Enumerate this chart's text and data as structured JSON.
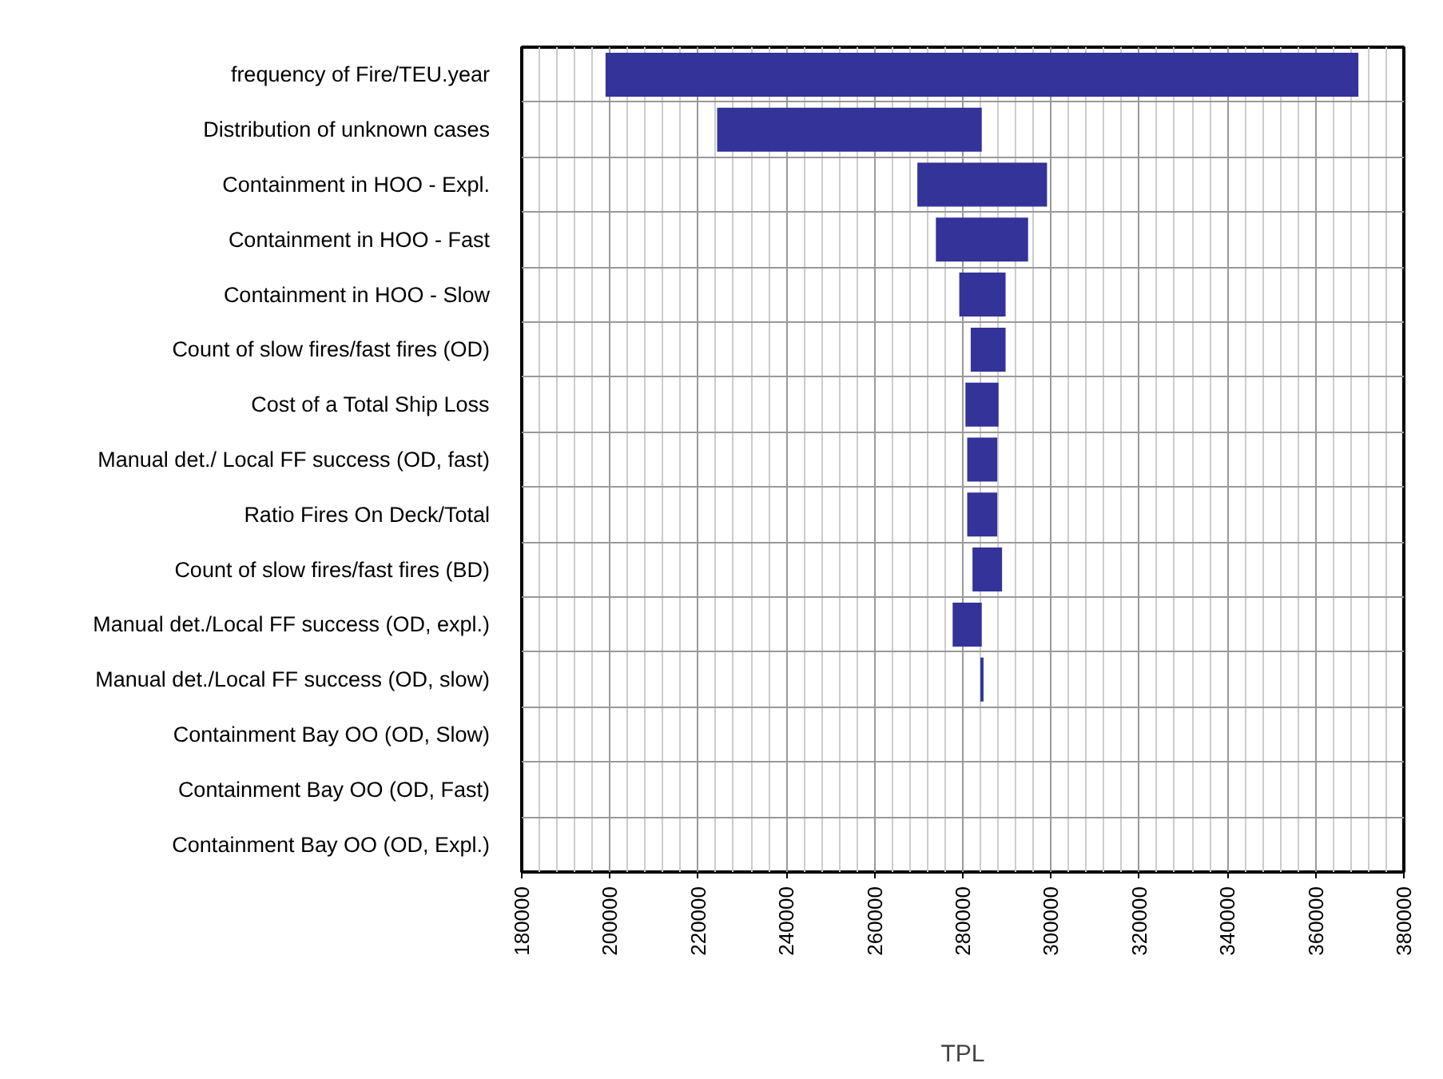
{
  "chart_data": {
    "type": "bar",
    "orientation": "horizontal",
    "xlabel": "TPL",
    "categories": [
      "frequency of Fire/TEU.year",
      "Distribution of unknown cases",
      "Containment in HOO - Expl.",
      "Containment in HOO - Fast",
      "Containment in HOO - Slow",
      "Count of slow fires/fast fires (OD)",
      "Cost of a Total Ship Loss",
      "Manual det./ Local FF success (OD, fast)",
      "Ratio Fires On Deck/Total",
      "Count of slow fires/fast fires (BD)",
      "Manual det./Local FF success (OD, expl.)",
      "Manual det./Local FF success (OD, slow)",
      "Containment Bay OO (OD, Slow)",
      "Containment Bay OO (OD, Fast)",
      "Containment Bay OO (OD, Expl.)"
    ],
    "base": [
      199000,
      224300,
      269700,
      273900,
      279200,
      281800,
      280600,
      281000,
      281000,
      282200,
      277700,
      284000,
      null,
      null,
      null
    ],
    "values": [
      170700,
      60000,
      29400,
      20900,
      10500,
      7900,
      7500,
      6800,
      6800,
      6700,
      6600,
      700,
      null,
      null,
      null
    ],
    "color": "#333399",
    "xlim": [
      180000,
      380000
    ],
    "xticks": [
      180000,
      200000,
      220000,
      240000,
      260000,
      280000,
      300000,
      320000,
      340000,
      360000,
      380000
    ],
    "grid": true
  }
}
